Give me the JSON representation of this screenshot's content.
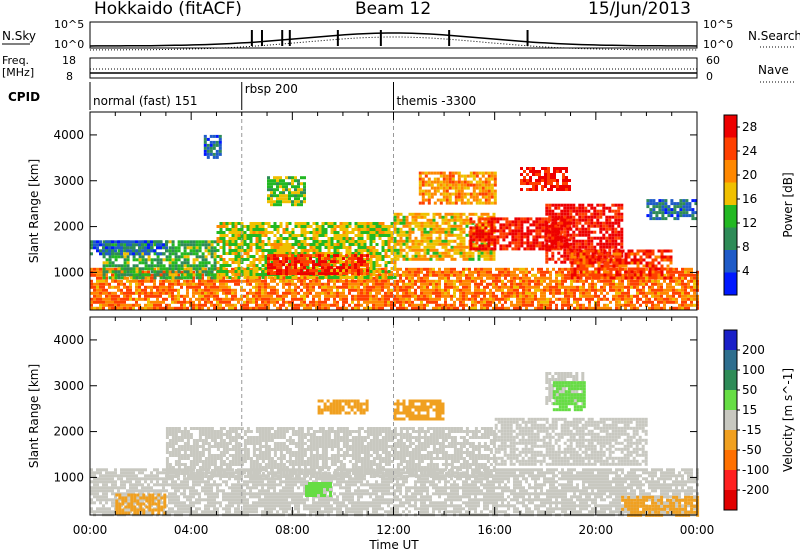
{
  "header": {
    "station": "Hokkaido (fitACF)",
    "beam": "Beam 12",
    "date": "15/Jun/2013"
  },
  "panels": {
    "nsky_label": "N.Sky",
    "nsearch_label": "N.Search",
    "nsky_ticks": [
      "10^5",
      "10^0"
    ],
    "nsearch_ticks": [
      "10^5",
      "10^0"
    ],
    "freq_label": [
      "Freq.",
      "[MHz]"
    ],
    "freq_ticks": [
      "18",
      "8"
    ],
    "nave_label": "Nave",
    "nave_ticks": [
      "60",
      "0"
    ],
    "cpid_label": "CPID",
    "cpid_segments": [
      {
        "label": "normal (fast) 151",
        "start_hour": 0,
        "end_hour": 6
      },
      {
        "label": "rbsp 200",
        "start_hour": 6,
        "end_hour": 12
      },
      {
        "label": "themis -3300",
        "start_hour": 12,
        "end_hour": 24
      }
    ]
  },
  "chart_data": [
    {
      "type": "heatmap",
      "title": "",
      "xlabel": "Time UT",
      "ylabel": "Slant Range [km]",
      "xlim": [
        0,
        24
      ],
      "ylim": [
        180,
        4500
      ],
      "x_tick_labels": [
        "00:00",
        "04:00",
        "08:00",
        "12:00",
        "16:00",
        "20:00",
        "00:00"
      ],
      "y_ticks": [
        1000,
        2000,
        3000,
        4000
      ],
      "colorbar": {
        "label": "Power [dB]",
        "ticks": [
          4,
          8,
          12,
          16,
          20,
          24,
          28
        ],
        "range": [
          0,
          30
        ],
        "colors": [
          "#0018ff",
          "#1f5bc8",
          "#2e8b57",
          "#22b822",
          "#f0c000",
          "#ff8800",
          "#ff4000",
          "#ee0000"
        ]
      },
      "regions": [
        {
          "t0": 0,
          "t1": 24,
          "r0": 200,
          "r1": 1100,
          "value": 22
        },
        {
          "t0": 0.5,
          "t1": 5,
          "r0": 900,
          "r1": 1700,
          "value": 12
        },
        {
          "t0": 5,
          "t1": 12,
          "r0": 900,
          "r1": 2100,
          "value": 16
        },
        {
          "t0": 7,
          "t1": 11,
          "r0": 1000,
          "r1": 1400,
          "value": 26
        },
        {
          "t0": 12,
          "t1": 16,
          "r0": 1300,
          "r1": 2300,
          "value": 18
        },
        {
          "t0": 15,
          "t1": 19,
          "r0": 1500,
          "r1": 2200,
          "value": 27
        },
        {
          "t0": 18,
          "t1": 21,
          "r0": 1200,
          "r1": 2500,
          "value": 28
        },
        {
          "t0": 19,
          "t1": 23,
          "r0": 900,
          "r1": 1500,
          "value": 25
        },
        {
          "t0": 13,
          "t1": 16,
          "r0": 2500,
          "r1": 3200,
          "value": 20
        },
        {
          "t0": 17,
          "t1": 19,
          "r0": 2800,
          "r1": 3300,
          "value": 27
        },
        {
          "t0": 4.5,
          "t1": 5.2,
          "r0": 3500,
          "r1": 4000,
          "value": 6
        },
        {
          "t0": 7,
          "t1": 8.5,
          "r0": 2500,
          "r1": 3100,
          "value": 14
        },
        {
          "t0": 0,
          "t1": 3,
          "r0": 1400,
          "r1": 1700,
          "value": 6
        },
        {
          "t0": 22,
          "t1": 24,
          "r0": 2200,
          "r1": 2600,
          "value": 7
        }
      ]
    },
    {
      "type": "heatmap",
      "title": "",
      "xlabel": "Time UT",
      "ylabel": "Slant Range [km]",
      "xlim": [
        0,
        24
      ],
      "ylim": [
        180,
        4500
      ],
      "x_tick_labels": [
        "00:00",
        "04:00",
        "08:00",
        "12:00",
        "16:00",
        "20:00",
        "00:00"
      ],
      "y_ticks": [
        1000,
        2000,
        3000,
        4000
      ],
      "colorbar": {
        "label": "Velocity [m s^-1]",
        "ticks": [
          200,
          100,
          50,
          15,
          -15,
          -50,
          -100,
          -200
        ],
        "colors": [
          "#1a20c8",
          "#2e6e8e",
          "#2e8b57",
          "#66dd44",
          "#c8c8c0",
          "#f0a020",
          "#ff7000",
          "#ff2020",
          "#e00000"
        ]
      },
      "regions": [
        {
          "t0": 0,
          "t1": 24,
          "r0": 200,
          "r1": 1200,
          "value": 0
        },
        {
          "t0": 3,
          "t1": 16,
          "r0": 1000,
          "r1": 2100,
          "value": 0
        },
        {
          "t0": 16,
          "t1": 22,
          "r0": 1300,
          "r1": 2300,
          "value": 0
        },
        {
          "t0": 18,
          "t1": 19.5,
          "r0": 2600,
          "r1": 3300,
          "value": 0
        },
        {
          "t0": 18.3,
          "t1": 19.5,
          "r0": 2500,
          "r1": 3100,
          "value": 30
        },
        {
          "t0": 1,
          "t1": 3,
          "r0": 250,
          "r1": 650,
          "value": -40
        },
        {
          "t0": 12,
          "t1": 14,
          "r0": 2300,
          "r1": 2700,
          "value": -40
        },
        {
          "t0": 9,
          "t1": 11,
          "r0": 2400,
          "r1": 2700,
          "value": -40
        },
        {
          "t0": 21,
          "t1": 24,
          "r0": 200,
          "r1": 600,
          "value": -40
        },
        {
          "t0": 8.5,
          "t1": 9.5,
          "r0": 600,
          "r1": 900,
          "value": 30
        }
      ]
    }
  ]
}
